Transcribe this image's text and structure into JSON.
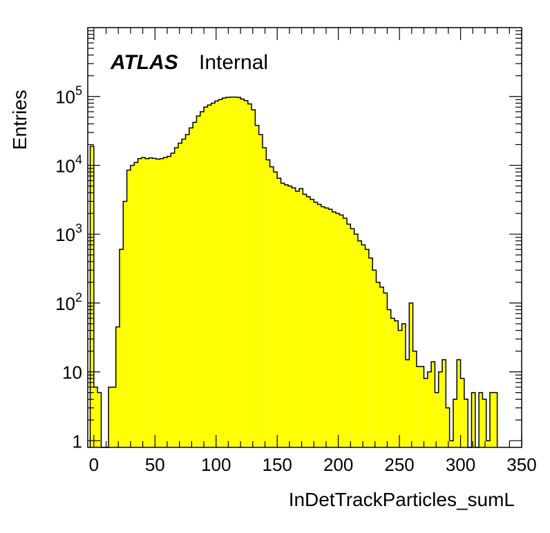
{
  "chart_data": {
    "type": "bar",
    "subtype": "histogram",
    "x_scale": "linear",
    "y_scale": "log",
    "xlabel": "InDetTrackParticles_sumL",
    "ylabel": "Entries",
    "xlim": [
      -5,
      350
    ],
    "ylim": [
      0.8,
      1000000
    ],
    "x_ticks": [
      0,
      50,
      100,
      150,
      200,
      250,
      300,
      350
    ],
    "y_ticks": [
      {
        "value": 1,
        "base": "1",
        "exp": ""
      },
      {
        "value": 10,
        "base": "10",
        "exp": ""
      },
      {
        "value": 100,
        "base": "10",
        "exp": "2"
      },
      {
        "value": 1000,
        "base": "10",
        "exp": "3"
      },
      {
        "value": 10000,
        "base": "10",
        "exp": "4"
      },
      {
        "value": 100000,
        "base": "10",
        "exp": "5"
      }
    ],
    "bin_width": 3.0,
    "first_bin_low": -3.0,
    "values": [
      19000,
      6,
      5,
      0,
      0,
      6,
      6,
      45,
      600,
      3000,
      8500,
      10000,
      11000,
      12500,
      13000,
      12500,
      12800,
      12600,
      12300,
      12500,
      13000,
      13500,
      15000,
      18000,
      21000,
      24000,
      28000,
      35000,
      42000,
      52000,
      60000,
      70000,
      75000,
      80000,
      86000,
      90000,
      95000,
      97000,
      98000,
      98000,
      97000,
      92000,
      87000,
      78000,
      64000,
      38000,
      28000,
      18000,
      12000,
      9500,
      8000,
      6500,
      5500,
      5200,
      5000,
      4700,
      4200,
      4600,
      3800,
      3500,
      3200,
      2900,
      2700,
      2500,
      2400,
      2300,
      2100,
      2000,
      1900,
      1700,
      1400,
      1200,
      1000,
      800,
      700,
      600,
      450,
      300,
      200,
      170,
      140,
      80,
      60,
      55,
      40,
      50,
      15,
      100,
      20,
      12,
      12,
      8,
      10,
      14,
      5,
      10,
      15,
      3,
      1,
      4,
      15,
      8,
      4,
      0,
      5,
      0,
      5,
      4,
      1,
      5,
      5
    ],
    "fill_color": "#ffff00",
    "line_color": "#000000"
  },
  "labels": {
    "atlas": "ATLAS",
    "internal": "Internal"
  }
}
